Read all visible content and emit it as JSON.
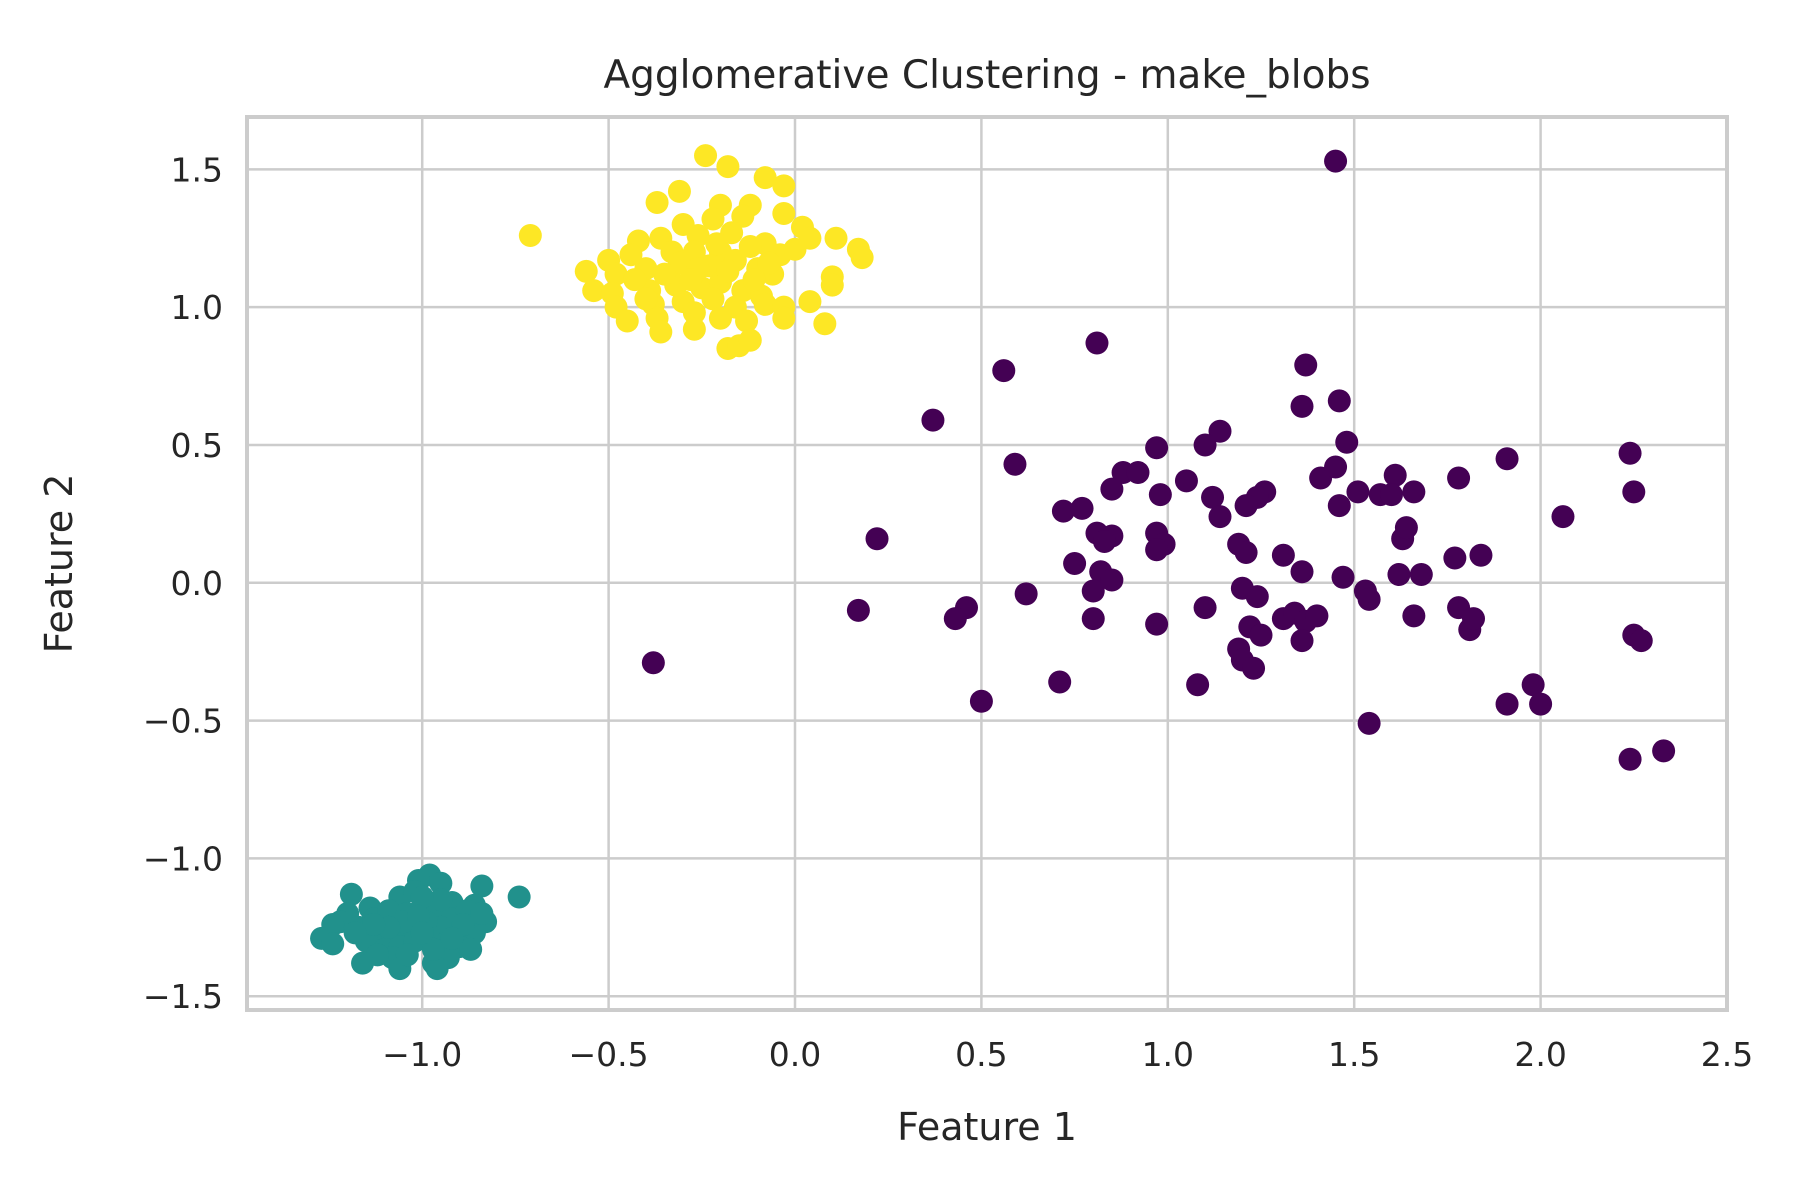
{
  "chart_data": {
    "type": "scatter",
    "title": "Agglomerative Clustering - make_blobs",
    "xlabel": "Feature 1",
    "ylabel": "Feature 2",
    "xlim": [
      -1.47,
      2.5
    ],
    "ylim": [
      -1.55,
      1.69
    ],
    "x_ticks": [
      -1.0,
      -0.5,
      0.0,
      0.5,
      1.0,
      1.5,
      2.0,
      2.5
    ],
    "x_tick_labels": [
      "−1.0",
      "−0.5",
      "0.0",
      "0.5",
      "1.0",
      "1.5",
      "2.0",
      "2.5"
    ],
    "y_ticks": [
      -1.5,
      -1.0,
      -0.5,
      0.0,
      0.5,
      1.0,
      1.5
    ],
    "y_tick_labels": [
      "−1.5",
      "−1.0",
      "−0.5",
      "0.0",
      "0.5",
      "1.0",
      "1.5"
    ],
    "grid": true,
    "legend": "none",
    "colors": {
      "grid": "#cccccc",
      "spine": "#cccccc",
      "text": "#262626",
      "background": "#ffffff"
    },
    "series": [
      {
        "cluster": 0,
        "color": "#440154",
        "points": [
          [
            1.45,
            1.53
          ],
          [
            0.81,
            0.87
          ],
          [
            1.37,
            0.79
          ],
          [
            0.56,
            0.77
          ],
          [
            1.36,
            0.64
          ],
          [
            1.46,
            0.66
          ],
          [
            0.37,
            0.59
          ],
          [
            1.14,
            0.55
          ],
          [
            1.48,
            0.51
          ],
          [
            0.97,
            0.49
          ],
          [
            1.1,
            0.5
          ],
          [
            0.59,
            0.43
          ],
          [
            1.91,
            0.45
          ],
          [
            2.24,
            0.47
          ],
          [
            0.88,
            0.4
          ],
          [
            0.92,
            0.4
          ],
          [
            1.05,
            0.37
          ],
          [
            1.41,
            0.38
          ],
          [
            1.45,
            0.42
          ],
          [
            1.78,
            0.38
          ],
          [
            1.61,
            0.39
          ],
          [
            0.85,
            0.34
          ],
          [
            0.98,
            0.32
          ],
          [
            1.12,
            0.31
          ],
          [
            1.26,
            0.33
          ],
          [
            1.24,
            0.31
          ],
          [
            1.51,
            0.33
          ],
          [
            1.57,
            0.32
          ],
          [
            1.6,
            0.32
          ],
          [
            1.66,
            0.33
          ],
          [
            2.25,
            0.33
          ],
          [
            0.72,
            0.26
          ],
          [
            0.77,
            0.27
          ],
          [
            1.14,
            0.24
          ],
          [
            1.21,
            0.28
          ],
          [
            1.46,
            0.28
          ],
          [
            2.06,
            0.24
          ],
          [
            0.81,
            0.18
          ],
          [
            0.85,
            0.17
          ],
          [
            0.83,
            0.15
          ],
          [
            0.97,
            0.18
          ],
          [
            0.99,
            0.14
          ],
          [
            0.97,
            0.12
          ],
          [
            1.19,
            0.14
          ],
          [
            1.21,
            0.11
          ],
          [
            1.63,
            0.16
          ],
          [
            1.64,
            0.2
          ],
          [
            0.22,
            0.16
          ],
          [
            0.75,
            0.07
          ],
          [
            0.82,
            0.04
          ],
          [
            0.85,
            0.01
          ],
          [
            1.31,
            0.1
          ],
          [
            1.36,
            0.04
          ],
          [
            1.47,
            0.02
          ],
          [
            1.62,
            0.03
          ],
          [
            1.68,
            0.03
          ],
          [
            1.77,
            0.09
          ],
          [
            1.84,
            0.1
          ],
          [
            0.8,
            -0.03
          ],
          [
            0.62,
            -0.04
          ],
          [
            1.2,
            -0.02
          ],
          [
            1.24,
            -0.05
          ],
          [
            1.53,
            -0.03
          ],
          [
            1.54,
            -0.06
          ],
          [
            0.17,
            -0.1
          ],
          [
            0.46,
            -0.09
          ],
          [
            0.43,
            -0.13
          ],
          [
            0.8,
            -0.13
          ],
          [
            1.1,
            -0.09
          ],
          [
            1.31,
            -0.13
          ],
          [
            1.34,
            -0.11
          ],
          [
            1.37,
            -0.14
          ],
          [
            1.4,
            -0.12
          ],
          [
            1.22,
            -0.16
          ],
          [
            1.25,
            -0.19
          ],
          [
            1.36,
            -0.21
          ],
          [
            1.66,
            -0.12
          ],
          [
            1.78,
            -0.09
          ],
          [
            1.81,
            -0.17
          ],
          [
            1.82,
            -0.13
          ],
          [
            0.97,
            -0.15
          ],
          [
            2.25,
            -0.19
          ],
          [
            2.27,
            -0.21
          ],
          [
            1.19,
            -0.24
          ],
          [
            1.2,
            -0.28
          ],
          [
            1.23,
            -0.31
          ],
          [
            -0.38,
            -0.29
          ],
          [
            0.71,
            -0.36
          ],
          [
            1.08,
            -0.37
          ],
          [
            1.98,
            -0.37
          ],
          [
            1.91,
            -0.44
          ],
          [
            2.0,
            -0.44
          ],
          [
            0.5,
            -0.43
          ],
          [
            1.54,
            -0.51
          ],
          [
            2.24,
            -0.64
          ],
          [
            2.33,
            -0.61
          ]
        ]
      },
      {
        "cluster": 1,
        "color": "#21918c",
        "points": [
          [
            -0.74,
            -1.14
          ],
          [
            -0.84,
            -1.1
          ],
          [
            -0.98,
            -1.06
          ],
          [
            -0.95,
            -1.09
          ],
          [
            -1.01,
            -1.08
          ],
          [
            -1.06,
            -1.14
          ],
          [
            -1.02,
            -1.12
          ],
          [
            -0.92,
            -1.16
          ],
          [
            -0.86,
            -1.17
          ],
          [
            -1.19,
            -1.13
          ],
          [
            -1.14,
            -1.18
          ],
          [
            -1.2,
            -1.2
          ],
          [
            -1.22,
            -1.23
          ],
          [
            -1.24,
            -1.24
          ],
          [
            -1.27,
            -1.29
          ],
          [
            -1.24,
            -1.31
          ],
          [
            -1.17,
            -1.25
          ],
          [
            -1.13,
            -1.22
          ],
          [
            -1.09,
            -1.19
          ],
          [
            -1.04,
            -1.2
          ],
          [
            -1.0,
            -1.18
          ],
          [
            -0.96,
            -1.2
          ],
          [
            -0.92,
            -1.22
          ],
          [
            -0.88,
            -1.19
          ],
          [
            -0.83,
            -1.23
          ],
          [
            -0.86,
            -1.27
          ],
          [
            -0.91,
            -1.27
          ],
          [
            -0.95,
            -1.25
          ],
          [
            -0.99,
            -1.23
          ],
          [
            -1.03,
            -1.25
          ],
          [
            -1.07,
            -1.27
          ],
          [
            -1.11,
            -1.29
          ],
          [
            -1.15,
            -1.3
          ],
          [
            -1.1,
            -1.33
          ],
          [
            -1.06,
            -1.32
          ],
          [
            -1.02,
            -1.3
          ],
          [
            -0.98,
            -1.29
          ],
          [
            -0.94,
            -1.31
          ],
          [
            -0.9,
            -1.32
          ],
          [
            -0.87,
            -1.33
          ],
          [
            -0.93,
            -1.36
          ],
          [
            -0.97,
            -1.38
          ],
          [
            -1.08,
            -1.36
          ],
          [
            -1.12,
            -1.35
          ],
          [
            -1.16,
            -1.38
          ],
          [
            -1.06,
            -1.4
          ],
          [
            -0.96,
            -1.4
          ],
          [
            -0.95,
            -1.15
          ],
          [
            -1.0,
            -1.14
          ],
          [
            -1.05,
            -1.23
          ],
          [
            -1.09,
            -1.25
          ],
          [
            -0.89,
            -1.24
          ],
          [
            -1.01,
            -1.21
          ],
          [
            -1.13,
            -1.24
          ],
          [
            -0.97,
            -1.33
          ],
          [
            -1.04,
            -1.35
          ],
          [
            -1.18,
            -1.27
          ],
          [
            -0.92,
            -1.29
          ],
          [
            -1.0,
            -1.27
          ],
          [
            -0.84,
            -1.2
          ]
        ]
      },
      {
        "cluster": 2,
        "color": "#fde725",
        "points": [
          [
            -0.24,
            1.55
          ],
          [
            -0.18,
            1.51
          ],
          [
            -0.08,
            1.47
          ],
          [
            -0.03,
            1.44
          ],
          [
            -0.31,
            1.42
          ],
          [
            -0.37,
            1.38
          ],
          [
            -0.2,
            1.37
          ],
          [
            -0.12,
            1.37
          ],
          [
            -0.03,
            1.34
          ],
          [
            -0.71,
            1.26
          ],
          [
            -0.3,
            1.3
          ],
          [
            -0.22,
            1.32
          ],
          [
            -0.14,
            1.33
          ],
          [
            0.02,
            1.29
          ],
          [
            0.04,
            1.25
          ],
          [
            0.11,
            1.25
          ],
          [
            0.17,
            1.21
          ],
          [
            0.18,
            1.18
          ],
          [
            -0.42,
            1.24
          ],
          [
            -0.36,
            1.25
          ],
          [
            -0.26,
            1.26
          ],
          [
            -0.17,
            1.27
          ],
          [
            -0.08,
            1.23
          ],
          [
            -0.5,
            1.17
          ],
          [
            -0.44,
            1.19
          ],
          [
            -0.33,
            1.2
          ],
          [
            -0.27,
            1.2
          ],
          [
            -0.2,
            1.2
          ],
          [
            -0.12,
            1.22
          ],
          [
            -0.04,
            1.19
          ],
          [
            0.0,
            1.21
          ],
          [
            -0.56,
            1.13
          ],
          [
            -0.48,
            1.12
          ],
          [
            -0.4,
            1.14
          ],
          [
            -0.31,
            1.16
          ],
          [
            -0.23,
            1.15
          ],
          [
            -0.16,
            1.17
          ],
          [
            -0.1,
            1.14
          ],
          [
            -0.06,
            1.12
          ],
          [
            0.1,
            1.11
          ],
          [
            0.1,
            1.08
          ],
          [
            -0.54,
            1.06
          ],
          [
            -0.49,
            1.05
          ],
          [
            -0.39,
            1.06
          ],
          [
            -0.32,
            1.08
          ],
          [
            -0.25,
            1.07
          ],
          [
            -0.2,
            1.09
          ],
          [
            -0.14,
            1.06
          ],
          [
            -0.09,
            1.04
          ],
          [
            -0.48,
            1.0
          ],
          [
            -0.38,
            1.01
          ],
          [
            -0.3,
            1.02
          ],
          [
            -0.22,
            1.03
          ],
          [
            -0.16,
            1.0
          ],
          [
            -0.08,
            1.01
          ],
          [
            -0.03,
            1.0
          ],
          [
            0.04,
            1.02
          ],
          [
            -0.45,
            0.95
          ],
          [
            -0.37,
            0.96
          ],
          [
            -0.27,
            0.98
          ],
          [
            -0.2,
            0.96
          ],
          [
            -0.13,
            0.95
          ],
          [
            -0.03,
            0.96
          ],
          [
            0.08,
            0.94
          ],
          [
            -0.36,
            0.91
          ],
          [
            -0.27,
            0.92
          ],
          [
            -0.18,
            0.85
          ],
          [
            -0.15,
            0.86
          ],
          [
            -0.12,
            0.88
          ],
          [
            -0.43,
            1.1
          ],
          [
            -0.35,
            1.12
          ],
          [
            -0.18,
            1.13
          ],
          [
            -0.26,
            1.14
          ],
          [
            -0.07,
            1.16
          ],
          [
            -0.21,
            1.23
          ],
          [
            -0.28,
            1.1
          ],
          [
            -0.11,
            1.1
          ],
          [
            -0.4,
            1.03
          ]
        ]
      }
    ]
  }
}
